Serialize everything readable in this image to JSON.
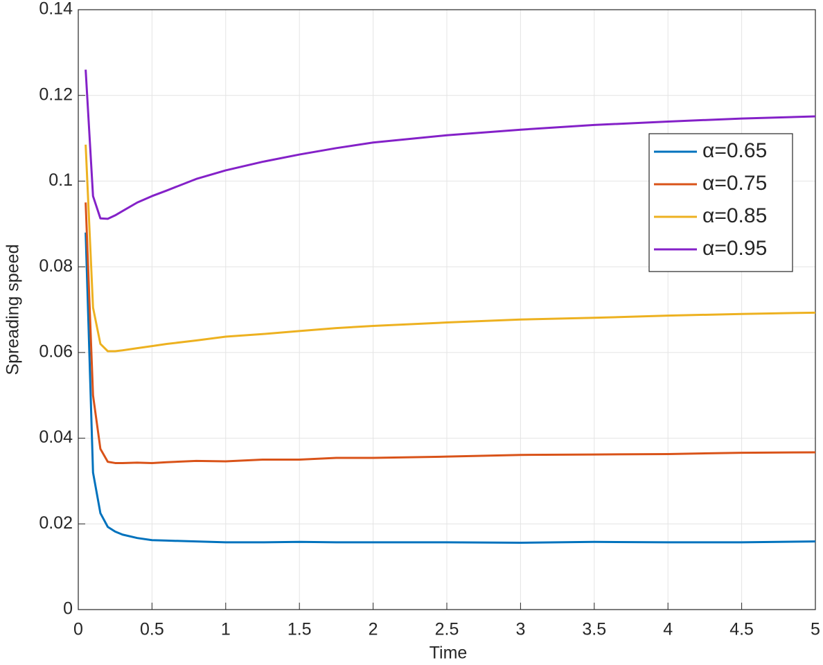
{
  "chart_data": {
    "type": "line",
    "x_label": "Time",
    "y_label": "Spreading speed",
    "x": [
      0.05,
      0.1,
      0.15,
      0.2,
      0.25,
      0.3,
      0.4,
      0.5,
      0.6,
      0.8,
      1.0,
      1.25,
      1.5,
      1.75,
      2,
      2.5,
      3,
      3.5,
      4,
      4.5,
      5
    ],
    "series": [
      {
        "name": "α=0.65",
        "color": "#0072BD",
        "values": [
          0.088,
          0.032,
          0.0225,
          0.0193,
          0.0182,
          0.0175,
          0.0167,
          0.0162,
          0.0161,
          0.0159,
          0.0157,
          0.0157,
          0.0158,
          0.0157,
          0.0157,
          0.0157,
          0.0156,
          0.0158,
          0.0157,
          0.0157,
          0.0159
        ]
      },
      {
        "name": "α=0.75",
        "color": "#D95319",
        "values": [
          0.095,
          0.05,
          0.0375,
          0.0345,
          0.0342,
          0.0342,
          0.0343,
          0.0342,
          0.0344,
          0.0347,
          0.0346,
          0.035,
          0.035,
          0.0354,
          0.0354,
          0.0357,
          0.0361,
          0.0362,
          0.0363,
          0.0366,
          0.0367
        ]
      },
      {
        "name": "α=0.85",
        "color": "#EDB120",
        "values": [
          0.1085,
          0.0705,
          0.062,
          0.0603,
          0.0603,
          0.0605,
          0.061,
          0.0615,
          0.062,
          0.0628,
          0.0637,
          0.0643,
          0.065,
          0.0657,
          0.0662,
          0.067,
          0.0677,
          0.0681,
          0.0686,
          0.069,
          0.0693
        ]
      },
      {
        "name": "α=0.95",
        "color": "#8421C8",
        "values": [
          0.126,
          0.0965,
          0.0913,
          0.0912,
          0.092,
          0.093,
          0.095,
          0.0965,
          0.0978,
          0.1005,
          0.1025,
          0.1045,
          0.1062,
          0.1077,
          0.109,
          0.1107,
          0.112,
          0.1131,
          0.1139,
          0.1146,
          0.1151
        ]
      }
    ],
    "xlim": [
      0,
      5
    ],
    "xticks": [
      0,
      0.5,
      1,
      1.5,
      2,
      2.5,
      3,
      3.5,
      4,
      4.5,
      5
    ],
    "ylim": [
      0,
      0.14
    ],
    "yticks": [
      0,
      0.02,
      0.04,
      0.06,
      0.08,
      0.1,
      0.12,
      0.14
    ],
    "grid": true,
    "legend": "northeast"
  }
}
